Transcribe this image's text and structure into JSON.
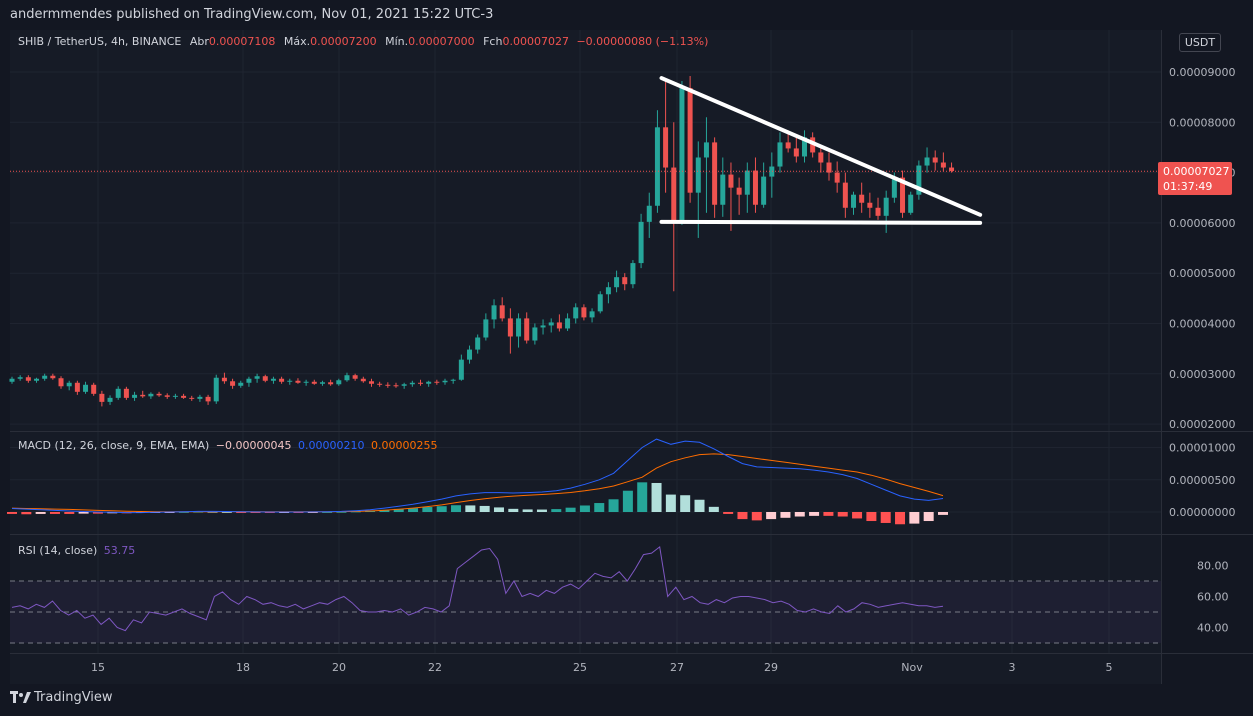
{
  "header": {
    "published": "andermmendes published on TradingView.com, Nov 01, 2021 15:22 UTC-3"
  },
  "main_legend": {
    "symbol": "SHIB / TetherUS, 4h, BINANCE",
    "open_label": "Abr",
    "open_value": "0.00007108",
    "high_label": "Máx.",
    "high_value": "0.00007200",
    "low_label": "Mín.",
    "low_value": "0.00007000",
    "close_label": "Fch",
    "close_value": "0.00007027",
    "change": "−0.00000080 (−1.13%)"
  },
  "currency_button": "USDT",
  "last_price": {
    "value": "0.00007027",
    "countdown": "01:37:49",
    "color": "#ef5350"
  },
  "macd_legend": {
    "label": "MACD (12, 26, close, 9, EMA, EMA)",
    "hist": "−0.00000045",
    "macd": "0.00000210",
    "signal": "0.00000255",
    "hist_color": "#f2c4c4",
    "macd_color": "#2962ff",
    "signal_color": "#ff6d00"
  },
  "rsi_legend": {
    "label": "RSI (14, close)",
    "value": "53.75",
    "color": "#7e57c2"
  },
  "footer": {
    "brand": "TradingView"
  },
  "colors": {
    "up": "#26a69a",
    "down": "#ef5350",
    "grid": "#1f2430",
    "text": "#b2b5be"
  },
  "chart_data": {
    "type": "candlestick",
    "price_axis": {
      "ticks": [
        "0.00009000",
        "0.00008000",
        "0.00007000",
        "0.00006000",
        "0.00005000",
        "0.00004000",
        "0.00003000",
        "0.00002000"
      ],
      "range": [
        1.8e-05,
        9.35e-05
      ]
    },
    "x_axis": {
      "ticks": [
        "15",
        "18",
        "20",
        "22",
        "25",
        "27",
        "29",
        "Nov",
        "3",
        "5"
      ]
    },
    "candles": [
      [
        2.84,
        2.94,
        2.8,
        2.9
      ],
      [
        2.9,
        2.97,
        2.86,
        2.93
      ],
      [
        2.93,
        2.97,
        2.82,
        2.86
      ],
      [
        2.86,
        2.92,
        2.82,
        2.9
      ],
      [
        2.9,
        3.0,
        2.86,
        2.96
      ],
      [
        2.96,
        3.0,
        2.88,
        2.91
      ],
      [
        2.91,
        2.95,
        2.7,
        2.75
      ],
      [
        2.75,
        2.86,
        2.67,
        2.82
      ],
      [
        2.82,
        2.86,
        2.58,
        2.64
      ],
      [
        2.64,
        2.84,
        2.6,
        2.78
      ],
      [
        2.78,
        2.82,
        2.56,
        2.6
      ],
      [
        2.6,
        2.66,
        2.35,
        2.44
      ],
      [
        2.44,
        2.57,
        2.38,
        2.52
      ],
      [
        2.52,
        2.75,
        2.48,
        2.7
      ],
      [
        2.7,
        2.74,
        2.48,
        2.52
      ],
      [
        2.52,
        2.64,
        2.46,
        2.58
      ],
      [
        2.58,
        2.66,
        2.52,
        2.55
      ],
      [
        2.55,
        2.63,
        2.5,
        2.6
      ],
      [
        2.6,
        2.64,
        2.54,
        2.57
      ],
      [
        2.57,
        2.61,
        2.5,
        2.54
      ],
      [
        2.54,
        2.6,
        2.5,
        2.56
      ],
      [
        2.56,
        2.6,
        2.5,
        2.52
      ],
      [
        2.52,
        2.56,
        2.46,
        2.5
      ],
      [
        2.5,
        2.58,
        2.44,
        2.54
      ],
      [
        2.54,
        2.58,
        2.38,
        2.45
      ],
      [
        2.45,
        2.98,
        2.4,
        2.92
      ],
      [
        2.92,
        3.02,
        2.8,
        2.85
      ],
      [
        2.85,
        2.9,
        2.7,
        2.76
      ],
      [
        2.76,
        2.86,
        2.72,
        2.82
      ],
      [
        2.82,
        2.94,
        2.74,
        2.9
      ],
      [
        2.9,
        3.0,
        2.82,
        2.95
      ],
      [
        2.95,
        2.98,
        2.83,
        2.86
      ],
      [
        2.86,
        2.94,
        2.8,
        2.9
      ],
      [
        2.9,
        2.94,
        2.8,
        2.84
      ],
      [
        2.84,
        2.9,
        2.78,
        2.86
      ],
      [
        2.86,
        2.91,
        2.8,
        2.82
      ],
      [
        2.82,
        2.88,
        2.76,
        2.84
      ],
      [
        2.84,
        2.88,
        2.78,
        2.8
      ],
      [
        2.8,
        2.86,
        2.76,
        2.83
      ],
      [
        2.83,
        2.88,
        2.76,
        2.79
      ],
      [
        2.79,
        2.9,
        2.76,
        2.87
      ],
      [
        2.87,
        3.02,
        2.84,
        2.97
      ],
      [
        2.97,
        3.0,
        2.86,
        2.9
      ],
      [
        2.9,
        2.94,
        2.82,
        2.85
      ],
      [
        2.85,
        2.9,
        2.74,
        2.8
      ],
      [
        2.8,
        2.84,
        2.74,
        2.78
      ],
      [
        2.78,
        2.83,
        2.72,
        2.77
      ],
      [
        2.77,
        2.82,
        2.72,
        2.76
      ],
      [
        2.76,
        2.82,
        2.7,
        2.79
      ],
      [
        2.79,
        2.86,
        2.74,
        2.82
      ],
      [
        2.82,
        2.88,
        2.76,
        2.8
      ],
      [
        2.8,
        2.86,
        2.74,
        2.84
      ],
      [
        2.84,
        2.88,
        2.78,
        2.83
      ],
      [
        2.83,
        2.9,
        2.78,
        2.86
      ],
      [
        2.86,
        2.9,
        2.8,
        2.88
      ],
      [
        2.88,
        3.38,
        2.86,
        3.28
      ],
      [
        3.28,
        3.56,
        3.2,
        3.48
      ],
      [
        3.48,
        3.78,
        3.4,
        3.72
      ],
      [
        3.72,
        4.2,
        3.66,
        4.08
      ],
      [
        4.08,
        4.48,
        3.9,
        4.36
      ],
      [
        4.36,
        4.52,
        4.04,
        4.1
      ],
      [
        4.1,
        4.3,
        3.4,
        3.74
      ],
      [
        3.74,
        4.2,
        3.52,
        4.1
      ],
      [
        4.1,
        4.22,
        3.6,
        3.66
      ],
      [
        3.66,
        4.0,
        3.58,
        3.92
      ],
      [
        3.92,
        4.08,
        3.78,
        3.96
      ],
      [
        3.96,
        4.1,
        3.82,
        4.02
      ],
      [
        4.02,
        4.18,
        3.84,
        3.9
      ],
      [
        3.9,
        4.2,
        3.85,
        4.1
      ],
      [
        4.1,
        4.4,
        4.0,
        4.32
      ],
      [
        4.32,
        4.38,
        4.06,
        4.12
      ],
      [
        4.12,
        4.3,
        4.02,
        4.24
      ],
      [
        4.24,
        4.64,
        4.2,
        4.58
      ],
      [
        4.58,
        4.82,
        4.4,
        4.72
      ],
      [
        4.72,
        5.05,
        4.62,
        4.92
      ],
      [
        4.92,
        5.0,
        4.66,
        4.78
      ],
      [
        4.78,
        5.26,
        4.7,
        5.2
      ],
      [
        5.2,
        6.18,
        5.1,
        6.02
      ],
      [
        6.02,
        6.6,
        5.7,
        6.34
      ],
      [
        6.34,
        8.24,
        6.2,
        7.9
      ],
      [
        7.9,
        8.84,
        6.6,
        7.1
      ],
      [
        7.1,
        8.0,
        4.64,
        6.0
      ],
      [
        6.0,
        8.82,
        5.96,
        8.68
      ],
      [
        8.68,
        8.92,
        6.4,
        6.6
      ],
      [
        6.6,
        7.62,
        5.7,
        7.3
      ],
      [
        7.3,
        8.1,
        6.2,
        7.6
      ],
      [
        7.6,
        7.7,
        6.1,
        6.36
      ],
      [
        6.36,
        7.3,
        6.12,
        6.96
      ],
      [
        6.96,
        7.2,
        5.84,
        6.7
      ],
      [
        6.7,
        6.9,
        6.16,
        6.56
      ],
      [
        6.56,
        7.2,
        6.2,
        7.04
      ],
      [
        7.04,
        7.3,
        6.2,
        6.36
      ],
      [
        6.36,
        7.2,
        6.3,
        6.92
      ],
      [
        6.92,
        7.4,
        6.5,
        7.12
      ],
      [
        7.12,
        7.8,
        7.0,
        7.6
      ],
      [
        7.6,
        7.84,
        7.4,
        7.48
      ],
      [
        7.48,
        7.76,
        7.2,
        7.32
      ],
      [
        7.32,
        7.84,
        7.2,
        7.7
      ],
      [
        7.7,
        7.8,
        7.3,
        7.4
      ],
      [
        7.4,
        7.5,
        7.0,
        7.2
      ],
      [
        7.2,
        7.4,
        6.84,
        7.0
      ],
      [
        7.0,
        7.22,
        6.6,
        6.8
      ],
      [
        6.8,
        7.0,
        6.1,
        6.3
      ],
      [
        6.3,
        6.62,
        6.16,
        6.56
      ],
      [
        6.56,
        6.8,
        6.2,
        6.4
      ],
      [
        6.4,
        6.6,
        6.1,
        6.3
      ],
      [
        6.3,
        6.5,
        6.06,
        6.14
      ],
      [
        6.14,
        6.64,
        5.8,
        6.5
      ],
      [
        6.5,
        7.0,
        6.4,
        6.9
      ],
      [
        6.9,
        7.04,
        6.1,
        6.2
      ],
      [
        6.2,
        6.62,
        6.16,
        6.56
      ],
      [
        6.56,
        7.24,
        6.46,
        7.14
      ],
      [
        7.14,
        7.5,
        7.0,
        7.3
      ],
      [
        7.3,
        7.44,
        7.04,
        7.2
      ],
      [
        7.2,
        7.4,
        7.02,
        7.1
      ],
      [
        7.1,
        7.2,
        7.0,
        7.03
      ]
    ],
    "trendlines": [
      {
        "name": "resistance",
        "from": [
          79.5,
          8.88
        ],
        "to": [
          118.5,
          6.16
        ]
      },
      {
        "name": "support",
        "from": [
          79.5,
          6.02
        ],
        "to": [
          118.5,
          6.0
        ]
      }
    ],
    "macd": {
      "axis_ticks": [
        "0.00001000",
        "0.00000500",
        "0.00000000"
      ],
      "macd": [
        0.55,
        0.45,
        0.35,
        0.25,
        0.15,
        0.08,
        0.0,
        -0.05,
        -0.1,
        -0.1,
        -0.05,
        0,
        0.05,
        0.1,
        0.1,
        0.08,
        0.05,
        0.02,
        0,
        0,
        0,
        0.02,
        0.05,
        0.1,
        0.2,
        0.35,
        0.6,
        0.9,
        1.2,
        1.6,
        2.0,
        2.5,
        2.8,
        3.0,
        3.0,
        2.95,
        3.0,
        3.1,
        3.3,
        3.7,
        4.3,
        5.0,
        6.0,
        8.0,
        10.0,
        11.3,
        10.5,
        11.0,
        10.8,
        9.8,
        8.6,
        7.5,
        7.0,
        6.9,
        6.8,
        6.7,
        6.5,
        6.2,
        5.8,
        5.2,
        4.3,
        3.4,
        2.5,
        2.0,
        1.8,
        2.1
      ],
      "signal": [
        0.6,
        0.55,
        0.5,
        0.45,
        0.4,
        0.32,
        0.25,
        0.18,
        0.12,
        0.08,
        0.05,
        0.03,
        0.03,
        0.04,
        0.05,
        0.06,
        0.06,
        0.05,
        0.04,
        0.03,
        0.03,
        0.03,
        0.04,
        0.06,
        0.1,
        0.16,
        0.27,
        0.42,
        0.6,
        0.83,
        1.1,
        1.45,
        1.78,
        2.06,
        2.29,
        2.46,
        2.6,
        2.72,
        2.85,
        3.03,
        3.29,
        3.61,
        4.03,
        4.7,
        5.4,
        6.8,
        7.8,
        8.4,
        8.9,
        9.0,
        8.9,
        8.6,
        8.3,
        8.0,
        7.7,
        7.4,
        7.1,
        6.8,
        6.5,
        6.2,
        5.7,
        5.1,
        4.4,
        3.8,
        3.2,
        2.55
      ],
      "histogram": [
        -0.3,
        -0.35,
        -0.3,
        -0.3,
        -0.3,
        -0.25,
        -0.25,
        -0.2,
        -0.2,
        -0.15,
        -0.1,
        -0.05,
        0.02,
        0.06,
        0.05,
        0.02,
        -0.01,
        -0.03,
        -0.04,
        -0.03,
        -0.03,
        -0.01,
        0.01,
        0.04,
        0.1,
        0.19,
        0.33,
        0.48,
        0.6,
        0.77,
        0.9,
        1.05,
        1.02,
        0.94,
        0.71,
        0.49,
        0.4,
        0.38,
        0.45,
        0.67,
        1.01,
        1.39,
        1.97,
        3.3,
        4.6,
        4.5,
        2.7,
        2.6,
        1.9,
        0.8,
        -0.3,
        -1.1,
        -1.3,
        -1.1,
        -0.9,
        -0.7,
        -0.6,
        -0.6,
        -0.7,
        -1.0,
        -1.4,
        -1.7,
        -1.9,
        -1.8,
        -1.4,
        -0.45
      ]
    },
    "rsi": {
      "axis_ticks": [
        "80.00",
        "60.00",
        "40.00"
      ],
      "bands": [
        70,
        50,
        30
      ],
      "values": [
        53,
        54,
        52,
        55,
        53,
        57,
        51,
        48,
        51,
        46,
        48,
        42,
        46,
        40,
        38,
        45,
        43,
        50,
        49,
        48,
        50,
        52,
        49,
        47,
        45,
        60,
        63,
        58,
        55,
        60,
        58,
        55,
        56,
        54,
        53,
        55,
        52,
        54,
        56,
        55,
        58,
        60,
        56,
        51,
        50,
        50,
        51,
        50,
        52,
        48,
        50,
        53,
        52,
        50,
        54,
        78,
        82,
        86,
        90,
        91,
        84,
        62,
        70,
        60,
        62,
        60,
        64,
        62,
        66,
        68,
        65,
        70,
        75,
        73,
        72,
        76,
        70,
        78,
        87,
        88,
        92,
        60,
        66,
        58,
        60,
        56,
        55,
        58,
        56,
        59,
        60,
        60,
        59,
        58,
        56,
        57,
        55,
        51,
        50,
        52,
        50,
        49,
        54,
        50,
        52,
        56,
        55,
        53,
        54,
        55,
        56,
        55,
        54,
        54,
        53,
        53.75
      ]
    }
  }
}
